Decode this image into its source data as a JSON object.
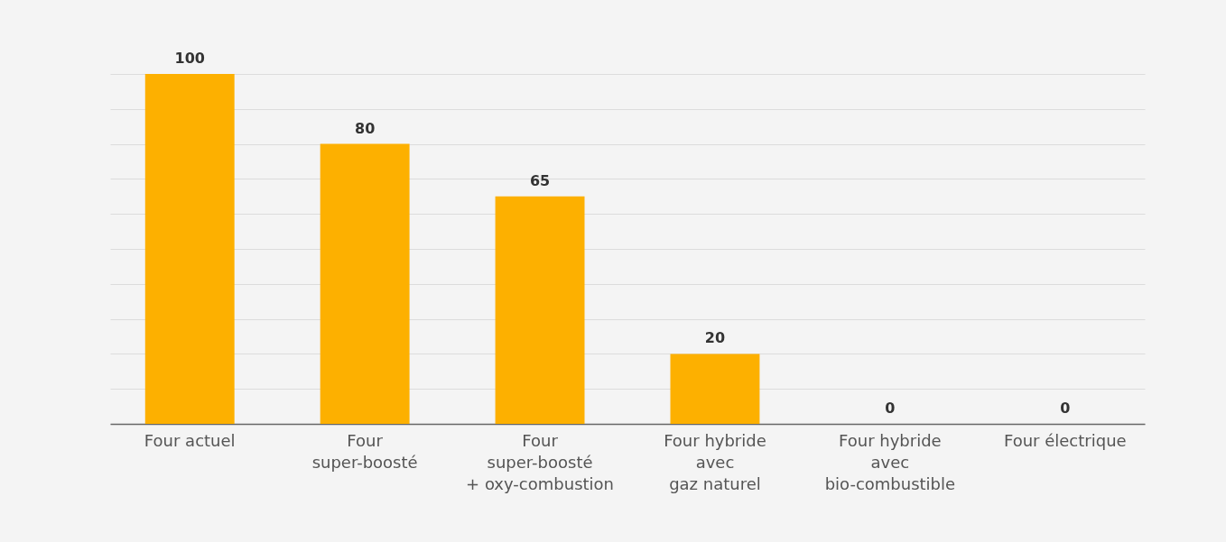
{
  "chart_data": {
    "type": "bar",
    "categories": [
      "Four actuel",
      "Four\nsuper-boosté",
      "Four\nsuper-boosté\n+ oxy-combustion",
      "Four hybride\navec\ngaz naturel",
      "Four hybride\navec\nbio-combustible",
      "Four électrique"
    ],
    "values": [
      100,
      80,
      65,
      20,
      0,
      0
    ],
    "color": "#fdb000",
    "ylim": [
      0,
      100
    ],
    "yticks": [
      {
        "value": 0,
        "label": null
      },
      {
        "value": 10,
        "label": null
      },
      {
        "value": 20,
        "label": null
      },
      {
        "value": 30,
        "label": null
      },
      {
        "value": 40,
        "label": null
      },
      {
        "value": 50,
        "label": null
      },
      {
        "value": 60,
        "label": null
      },
      {
        "value": 70,
        "label": null
      },
      {
        "value": 80,
        "label": null
      },
      {
        "value": 90,
        "label": null
      },
      {
        "value": 100,
        "label": null
      }
    ],
    "grid": "y",
    "tick_labels": "x",
    "data_labels": true
  }
}
